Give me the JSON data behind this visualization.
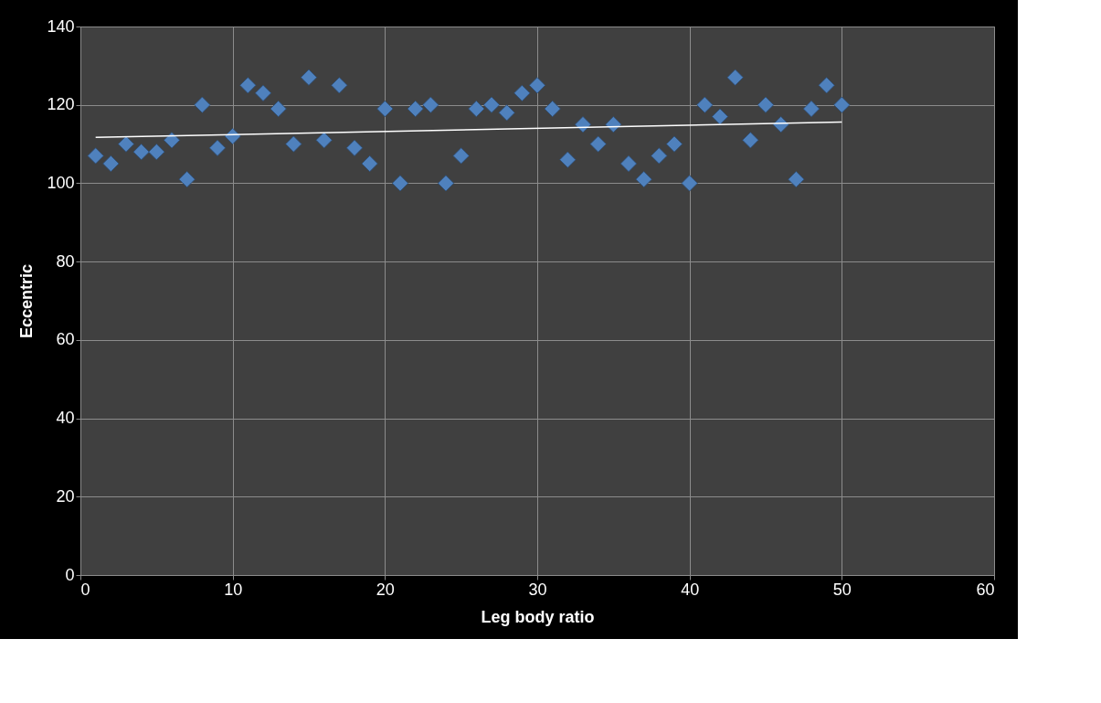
{
  "chart_data": {
    "type": "scatter",
    "xlabel": "Leg body ratio",
    "ylabel": "Eccentric",
    "xlim": [
      0,
      60
    ],
    "ylim": [
      0,
      140
    ],
    "xticks": [
      0,
      10,
      20,
      30,
      40,
      50,
      60
    ],
    "yticks": [
      0,
      20,
      40,
      60,
      80,
      100,
      120,
      140
    ],
    "grid": true,
    "series": [
      {
        "marker": "diamond",
        "color": "#4f81bd",
        "x": [
          1,
          2,
          3,
          4,
          5,
          6,
          7,
          8,
          9,
          10,
          11,
          12,
          13,
          14,
          15,
          16,
          17,
          18,
          19,
          20,
          21,
          22,
          23,
          24,
          25,
          26,
          27,
          28,
          29,
          30,
          31,
          32,
          33,
          34,
          35,
          36,
          37,
          38,
          39,
          40,
          41,
          42,
          43,
          44,
          45,
          46,
          47,
          48,
          49,
          50
        ],
        "values": [
          107,
          105,
          110,
          108,
          108,
          111,
          101,
          120,
          109,
          112,
          125,
          123,
          119,
          110,
          127,
          111,
          125,
          109,
          105,
          119,
          100,
          119,
          120,
          100,
          107,
          119,
          120,
          118,
          123,
          125,
          119,
          106,
          115,
          110,
          115,
          105,
          101,
          107,
          110,
          100,
          120,
          117,
          127,
          111,
          120,
          115,
          101,
          119,
          125,
          120
        ]
      },
      {
        "type": "line",
        "marker": "none",
        "color": "#ffffff",
        "x": [
          1,
          50
        ],
        "values": [
          111.7,
          115.6
        ]
      }
    ]
  }
}
